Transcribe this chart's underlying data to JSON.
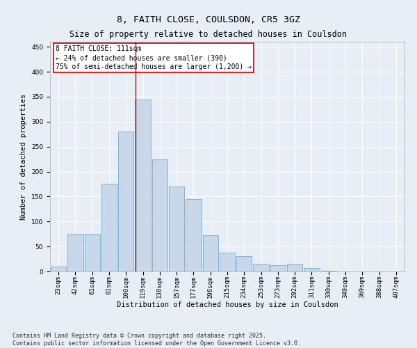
{
  "title": "8, FAITH CLOSE, COULSDON, CR5 3GZ",
  "subtitle": "Size of property relative to detached houses in Coulsdon",
  "xlabel": "Distribution of detached houses by size in Coulsdon",
  "ylabel": "Number of detached properties",
  "bar_color": "#c8d8ea",
  "bar_edge_color": "#7aaac8",
  "background_color": "#e8eef5",
  "grid_color": "#ffffff",
  "categories": [
    "23sqm",
    "42sqm",
    "61sqm",
    "81sqm",
    "100sqm",
    "119sqm",
    "138sqm",
    "157sqm",
    "177sqm",
    "196sqm",
    "215sqm",
    "234sqm",
    "253sqm",
    "273sqm",
    "292sqm",
    "311sqm",
    "330sqm",
    "349sqm",
    "369sqm",
    "388sqm",
    "407sqm"
  ],
  "values": [
    10,
    75,
    75,
    175,
    280,
    345,
    225,
    170,
    145,
    72,
    37,
    30,
    15,
    12,
    15,
    7,
    1,
    0,
    0,
    0,
    0
  ],
  "ylim": [
    0,
    460
  ],
  "yticks": [
    0,
    50,
    100,
    150,
    200,
    250,
    300,
    350,
    400,
    450
  ],
  "red_line_index": 4.57,
  "marker_label": "8 FAITH CLOSE: 111sqm",
  "annotation_line1": "← 24% of detached houses are smaller (390)",
  "annotation_line2": "75% of semi-detached houses are larger (1,200) →",
  "annotation_box_facecolor": "#ffffff",
  "annotation_box_edgecolor": "#cc0000",
  "red_line_color": "#cc0000",
  "footer_line1": "Contains HM Land Registry data © Crown copyright and database right 2025.",
  "footer_line2": "Contains public sector information licensed under the Open Government Licence v3.0.",
  "title_fontsize": 9.5,
  "subtitle_fontsize": 8.5,
  "axis_label_fontsize": 7.5,
  "tick_fontsize": 6.5,
  "annotation_fontsize": 7,
  "footer_fontsize": 6
}
